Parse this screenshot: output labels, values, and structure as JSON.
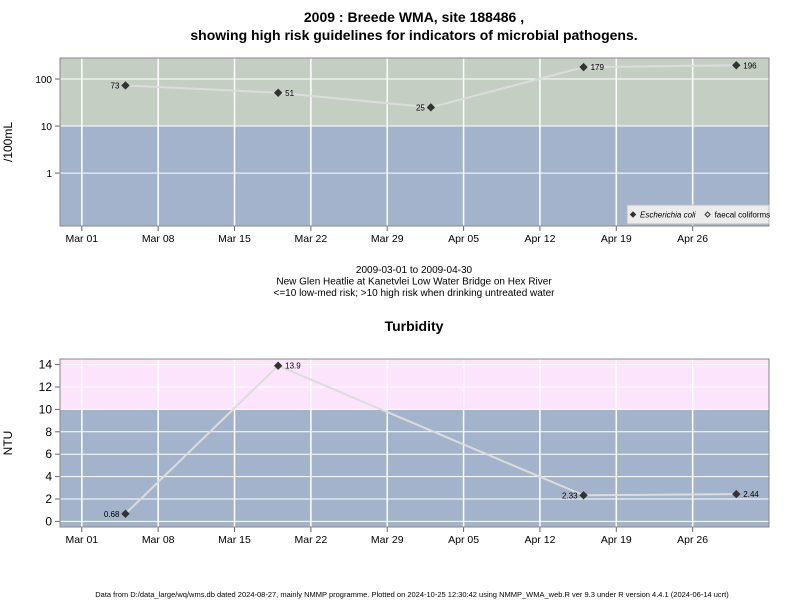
{
  "chart_data": [
    {
      "type": "line",
      "title": [
        "2009 : Breede WMA, site 188486 ,",
        "showing high risk guidelines for indicators of microbial pathogens."
      ],
      "ylabel": "/100mL",
      "log_y": true,
      "grid": true,
      "threshold": 10,
      "band_colors": {
        "above": "#c4cec3",
        "below": "#a3b3cb"
      },
      "line_color": "#dcdcdc",
      "point_color": "#333333",
      "x": [
        "2009-03-05",
        "2009-03-19",
        "2009-04-02",
        "2009-04-16",
        "2009-04-30"
      ],
      "xlim": [
        "2009-02-27",
        "2009-05-03"
      ],
      "xticks": [
        {
          "value": "2009-03-01",
          "label": "Mar 01"
        },
        {
          "value": "2009-03-08",
          "label": "Mar 08"
        },
        {
          "value": "2009-03-15",
          "label": "Mar 15"
        },
        {
          "value": "2009-03-22",
          "label": "Mar 22"
        },
        {
          "value": "2009-03-29",
          "label": "Mar 29"
        },
        {
          "value": "2009-04-05",
          "label": "Apr 05"
        },
        {
          "value": "2009-04-12",
          "label": "Apr 12"
        },
        {
          "value": "2009-04-19",
          "label": "Apr 19"
        },
        {
          "value": "2009-04-26",
          "label": "Apr 26"
        }
      ],
      "ylim": [
        0.075,
        280
      ],
      "yticks": [
        1,
        10,
        100
      ],
      "series": [
        {
          "name": "Escherichia coli",
          "italic": true,
          "marker": "filled",
          "values": [
            73,
            51,
            25,
            179,
            196
          ]
        },
        {
          "name": "faecal coliforms",
          "italic": false,
          "marker": "open",
          "values": [
            null,
            null,
            null,
            null,
            null
          ]
        }
      ],
      "legend": "bottom-right",
      "caption": [
        "2009-03-01 to 2009-04-30",
        "New Glen Heatlie at Kanetvlei Low Water Bridge on Hex River",
        "<=10 low-med risk; >10 high risk when drinking untreated water"
      ]
    },
    {
      "type": "line",
      "title": [
        "Turbidity"
      ],
      "ylabel": "NTU",
      "log_y": false,
      "grid": true,
      "threshold": 10,
      "band_colors": {
        "above": "#fde4fd",
        "below": "#a3b3cb"
      },
      "line_color": "#dcdcdc",
      "point_color": "#333333",
      "x": [
        "2009-03-05",
        "2009-03-19",
        "2009-04-16",
        "2009-04-30"
      ],
      "xlim": [
        "2009-02-27",
        "2009-05-03"
      ],
      "xticks": [
        {
          "value": "2009-03-01",
          "label": "Mar 01"
        },
        {
          "value": "2009-03-08",
          "label": "Mar 08"
        },
        {
          "value": "2009-03-15",
          "label": "Mar 15"
        },
        {
          "value": "2009-03-22",
          "label": "Mar 22"
        },
        {
          "value": "2009-03-29",
          "label": "Mar 29"
        },
        {
          "value": "2009-04-05",
          "label": "Apr 05"
        },
        {
          "value": "2009-04-12",
          "label": "Apr 12"
        },
        {
          "value": "2009-04-19",
          "label": "Apr 19"
        },
        {
          "value": "2009-04-26",
          "label": "Apr 26"
        }
      ],
      "ylim": [
        -0.5,
        14.5
      ],
      "yticks": [
        0,
        2,
        4,
        6,
        8,
        10,
        12,
        14
      ],
      "series": [
        {
          "name": "Turbidity",
          "marker": "filled",
          "values": [
            0.68,
            13.9,
            2.33,
            2.44
          ]
        }
      ]
    }
  ],
  "footer": "Data from D:/data_large/wq/wms.db dated 2024-08-27, mainly NMMP programme. Plotted on 2024-10-25 12:30:42 using NMMP_WMA_web.R ver 9.3 under R version 4.4.1 (2024-06-14 ucrt)"
}
